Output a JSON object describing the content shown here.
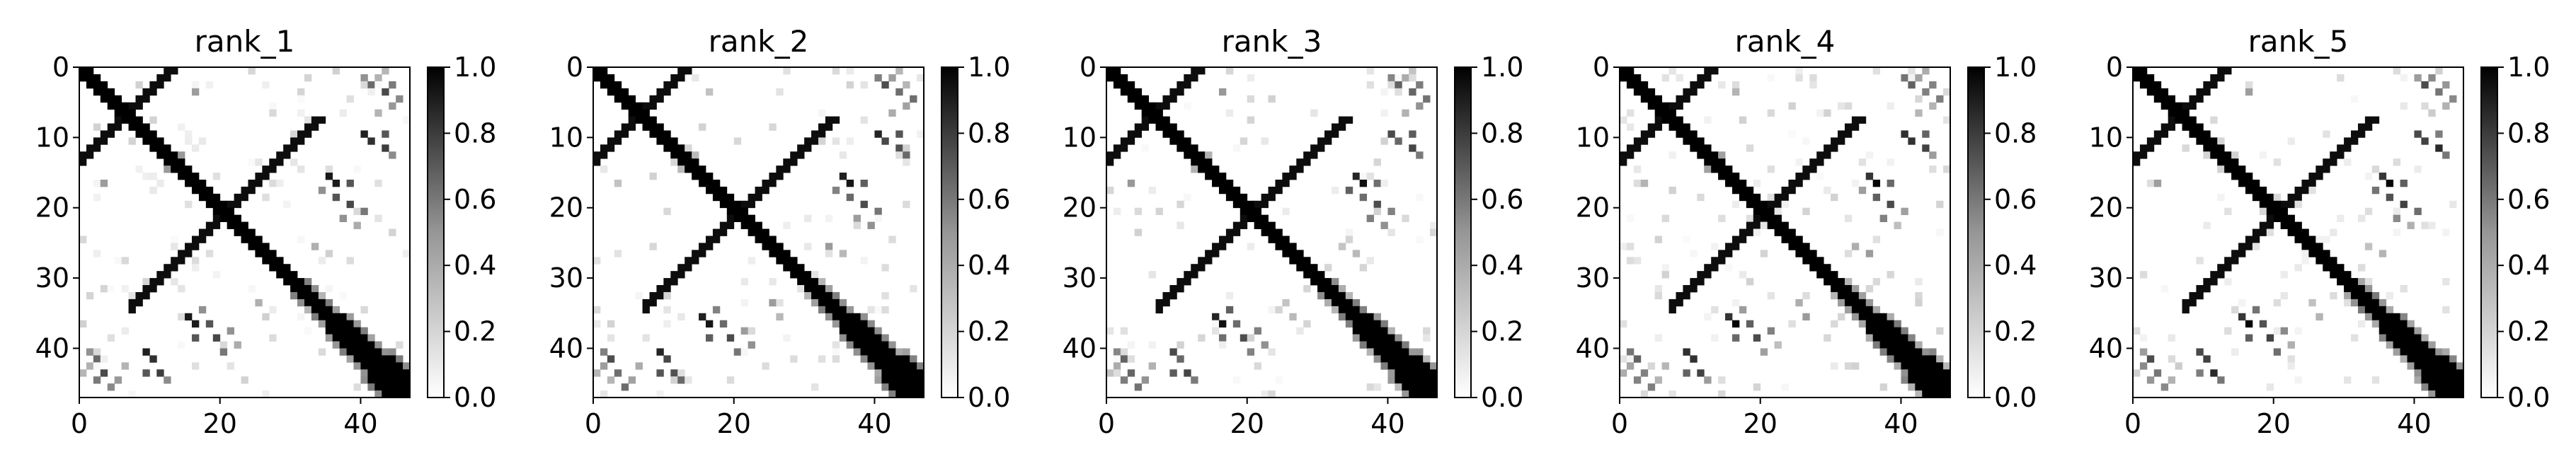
{
  "chart_data": [
    {
      "type": "heatmap",
      "title": "rank_1",
      "size": 47,
      "xticks": [
        0,
        20,
        40
      ],
      "yticks": [
        0,
        10,
        20,
        30,
        40
      ],
      "colorbar": {
        "range": [
          0.0,
          1.0
        ],
        "ticks": [
          "0.0",
          "0.2",
          "0.4",
          "0.6",
          "0.8",
          "1.0"
        ],
        "cmap": "Greys"
      },
      "grid": false
    },
    {
      "type": "heatmap",
      "title": "rank_2",
      "size": 47,
      "xticks": [
        0,
        20,
        40
      ],
      "yticks": [
        0,
        10,
        20,
        30,
        40
      ],
      "colorbar": {
        "range": [
          0.0,
          1.0
        ],
        "ticks": [
          "0.0",
          "0.2",
          "0.4",
          "0.6",
          "0.8",
          "1.0"
        ],
        "cmap": "Greys"
      },
      "grid": false
    },
    {
      "type": "heatmap",
      "title": "rank_3",
      "size": 47,
      "xticks": [
        0,
        20,
        40
      ],
      "yticks": [
        0,
        10,
        20,
        30,
        40
      ],
      "colorbar": {
        "range": [
          0.0,
          1.0
        ],
        "ticks": [
          "0.0",
          "0.2",
          "0.4",
          "0.6",
          "0.8",
          "1.0"
        ],
        "cmap": "Greys"
      },
      "grid": false
    },
    {
      "type": "heatmap",
      "title": "rank_4",
      "size": 47,
      "xticks": [
        0,
        20,
        40
      ],
      "yticks": [
        0,
        10,
        20,
        30,
        40
      ],
      "colorbar": {
        "range": [
          0.0,
          1.0
        ],
        "ticks": [
          "0.0",
          "0.2",
          "0.4",
          "0.6",
          "0.8",
          "1.0"
        ],
        "cmap": "Greys"
      },
      "grid": false
    },
    {
      "type": "heatmap",
      "title": "rank_5",
      "size": 47,
      "xticks": [
        0,
        20,
        40
      ],
      "yticks": [
        0,
        10,
        20,
        30,
        40
      ],
      "colorbar": {
        "range": [
          0.0,
          1.0
        ],
        "ticks": [
          "0.0",
          "0.2",
          "0.4",
          "0.6",
          "0.8",
          "1.0"
        ],
        "cmap": "Greys"
      },
      "grid": false
    }
  ],
  "contact_map": {
    "description_of_values": "approximate pairwise contact probability (0-1), symmetric",
    "diagonal_band": {
      "start": 0,
      "end": 46,
      "value": 1.0
    },
    "anti_diagonal_arms": [
      {
        "i_range": [
          0,
          12
        ],
        "sum": 12,
        "value": 0.95
      },
      {
        "i_range": [
          7,
          33
        ],
        "sum": 40,
        "value": 0.95
      }
    ],
    "scattered_contacts": [
      [
        9,
        40,
        0.8
      ],
      [
        10,
        41,
        0.7
      ],
      [
        9,
        43,
        0.6
      ],
      [
        11,
        43,
        0.8
      ],
      [
        12,
        44,
        0.5
      ],
      [
        15,
        35,
        0.85
      ],
      [
        16,
        36,
        0.9
      ],
      [
        18,
        36,
        0.7
      ],
      [
        16,
        38,
        0.6
      ],
      [
        19,
        38,
        0.8
      ],
      [
        17,
        34,
        0.5
      ],
      [
        20,
        40,
        0.5
      ],
      [
        1,
        40,
        0.5
      ],
      [
        2,
        41,
        0.7
      ],
      [
        1,
        42,
        0.4
      ],
      [
        3,
        43,
        0.6
      ],
      [
        2,
        44,
        0.4
      ],
      [
        4,
        45,
        0.5
      ],
      [
        0,
        43,
        0.3
      ],
      [
        5,
        44,
        0.3
      ],
      [
        6,
        42,
        0.3
      ],
      [
        21,
        37,
        0.4
      ],
      [
        22,
        39,
        0.35
      ],
      [
        25,
        33,
        0.3
      ],
      [
        26,
        35,
        0.3
      ],
      [
        12,
        14,
        0.3
      ],
      [
        3,
        16,
        0.3
      ]
    ]
  }
}
